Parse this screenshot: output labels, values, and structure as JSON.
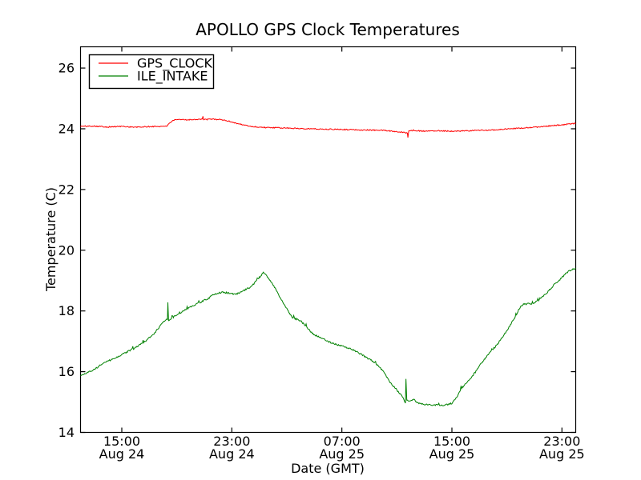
{
  "chart_data": {
    "type": "line",
    "title": "APOLLO GPS Clock Temperatures",
    "xlabel": "Date (GMT)",
    "ylabel": "Temperature (C)",
    "x_unit": "hours since Aug 24 12:00 GMT",
    "xlim": [
      0,
      36
    ],
    "ylim": [
      14,
      26.7
    ],
    "grid": false,
    "legend_position": "upper left",
    "y_ticks": [
      14,
      16,
      18,
      20,
      22,
      24,
      26
    ],
    "x_ticks": [
      {
        "t": 3,
        "time": "15:00",
        "date": "Aug 24"
      },
      {
        "t": 11,
        "time": "23:00",
        "date": "Aug 24"
      },
      {
        "t": 19,
        "time": "07:00",
        "date": "Aug 25"
      },
      {
        "t": 27,
        "time": "15:00",
        "date": "Aug 25"
      },
      {
        "t": 35,
        "time": "23:00",
        "date": "Aug 25"
      }
    ],
    "series": [
      {
        "name": "GPS_CLOCK",
        "color": "#ff0000",
        "noise": 0.018,
        "uptick_prob": 0.0,
        "uptick_amp": 0.0,
        "points": [
          [
            0,
            24.08
          ],
          [
            1,
            24.09
          ],
          [
            2,
            24.06
          ],
          [
            3,
            24.08
          ],
          [
            4,
            24.05
          ],
          [
            5,
            24.07
          ],
          [
            6,
            24.08
          ],
          [
            6.3,
            24.1
          ],
          [
            6.7,
            24.28
          ],
          [
            7.2,
            24.3
          ],
          [
            8.0,
            24.3
          ],
          [
            8.85,
            24.32
          ],
          [
            8.9,
            24.4
          ],
          [
            8.95,
            24.3
          ],
          [
            9.6,
            24.32
          ],
          [
            10.2,
            24.3
          ],
          [
            10.7,
            24.26
          ],
          [
            11.2,
            24.2
          ],
          [
            11.8,
            24.13
          ],
          [
            12.5,
            24.07
          ],
          [
            13.5,
            24.04
          ],
          [
            14.5,
            24.03
          ],
          [
            16,
            24.01
          ],
          [
            17.5,
            23.99
          ],
          [
            19,
            23.98
          ],
          [
            20.5,
            23.96
          ],
          [
            22,
            23.95
          ],
          [
            23.2,
            23.9
          ],
          [
            23.6,
            23.88
          ],
          [
            23.76,
            23.85
          ],
          [
            23.8,
            23.72
          ],
          [
            23.86,
            23.92
          ],
          [
            24.2,
            23.95
          ],
          [
            25,
            23.92
          ],
          [
            26,
            23.94
          ],
          [
            27,
            23.92
          ],
          [
            28,
            23.93
          ],
          [
            29,
            23.95
          ],
          [
            30,
            23.96
          ],
          [
            31,
            23.99
          ],
          [
            32,
            24.02
          ],
          [
            33,
            24.05
          ],
          [
            34,
            24.09
          ],
          [
            35,
            24.13
          ],
          [
            36,
            24.18
          ]
        ]
      },
      {
        "name": "ILE_INTAKE",
        "color": "#008000",
        "noise": 0.025,
        "uptick_prob": 0.05,
        "uptick_amp": 0.09,
        "points": [
          [
            0,
            15.88
          ],
          [
            0.5,
            15.97
          ],
          [
            1.0,
            16.07
          ],
          [
            1.6,
            16.26
          ],
          [
            2.3,
            16.4
          ],
          [
            2.9,
            16.54
          ],
          [
            3.9,
            16.77
          ],
          [
            4.8,
            17.03
          ],
          [
            5.4,
            17.28
          ],
          [
            6.0,
            17.63
          ],
          [
            6.32,
            17.74
          ],
          [
            6.35,
            18.28
          ],
          [
            6.4,
            17.7
          ],
          [
            6.7,
            17.78
          ],
          [
            7.2,
            17.92
          ],
          [
            7.75,
            18.08
          ],
          [
            8.6,
            18.26
          ],
          [
            9.3,
            18.42
          ],
          [
            9.7,
            18.55
          ],
          [
            10.3,
            18.62
          ],
          [
            10.9,
            18.58
          ],
          [
            11.3,
            18.55
          ],
          [
            11.9,
            18.68
          ],
          [
            12.4,
            18.8
          ],
          [
            12.9,
            19.05
          ],
          [
            13.3,
            19.26
          ],
          [
            13.6,
            19.12
          ],
          [
            14.0,
            18.87
          ],
          [
            14.7,
            18.29
          ],
          [
            15.4,
            17.78
          ],
          [
            16.0,
            17.68
          ],
          [
            16.9,
            17.24
          ],
          [
            18.1,
            16.97
          ],
          [
            19.6,
            16.76
          ],
          [
            20.3,
            16.6
          ],
          [
            21.4,
            16.3
          ],
          [
            22.0,
            16.02
          ],
          [
            22.5,
            15.66
          ],
          [
            22.9,
            15.45
          ],
          [
            23.3,
            15.24
          ],
          [
            23.55,
            15.05
          ],
          [
            23.62,
            14.97
          ],
          [
            23.66,
            15.77
          ],
          [
            23.72,
            15.05
          ],
          [
            23.9,
            15.02
          ],
          [
            24.2,
            15.1
          ],
          [
            24.5,
            14.97
          ],
          [
            24.9,
            14.93
          ],
          [
            25.6,
            14.9
          ],
          [
            26.5,
            14.9
          ],
          [
            27.0,
            14.96
          ],
          [
            27.3,
            15.12
          ],
          [
            27.6,
            15.37
          ],
          [
            28.0,
            15.6
          ],
          [
            28.5,
            15.85
          ],
          [
            29.1,
            16.25
          ],
          [
            29.7,
            16.6
          ],
          [
            30.3,
            16.9
          ],
          [
            31.0,
            17.35
          ],
          [
            31.6,
            17.8
          ],
          [
            31.9,
            18.08
          ],
          [
            32.2,
            18.22
          ],
          [
            32.9,
            18.25
          ],
          [
            33.3,
            18.35
          ],
          [
            33.8,
            18.55
          ],
          [
            34.4,
            18.85
          ],
          [
            34.9,
            19.05
          ],
          [
            35.3,
            19.25
          ],
          [
            35.7,
            19.36
          ],
          [
            36,
            19.4
          ]
        ]
      }
    ]
  }
}
